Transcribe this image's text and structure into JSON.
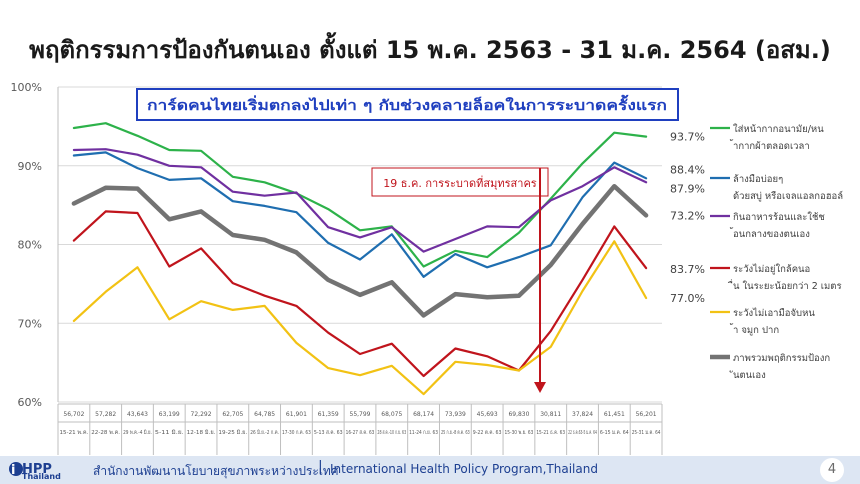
{
  "title": "พฤติกรรมการป้องกันตนเอง ตั้งแต่ 15 พ.ค. 2563 - 31 ม.ค. 2564 (อสม.)",
  "footer": {
    "org_th": "สำนักงานพัฒนานโยบายสุขภาพระหว่างประเทศ",
    "separator": "|",
    "org_en": "International Health Policy Program,Thailand",
    "logo_text": "iHPP",
    "logo_sub": "Thailand",
    "page_number": "4"
  },
  "chart_data": {
    "type": "line",
    "ylim": [
      60,
      100
    ],
    "y_ticks": [
      "100%",
      "90%",
      "80%",
      "70%",
      "60%"
    ],
    "grid": true,
    "legend_position": "right",
    "categories": [
      "15-21 พ.ค.",
      "22-28 พ.ค.",
      "29 พ.ค.-4 มิ.ย.",
      "5-11 มิ.ย.",
      "12-18 มิ.ย.",
      "19-25 มิ.ย.",
      "26 มิ.ย.-2 ก.ค.",
      "17-30 ก.ค. 63",
      "5-13 ส.ค. 63",
      "16-27 ส.ค. 63",
      "28 ส.ค.-10 ก.ย. 63",
      "11-24 ก.ย. 63",
      "25 ก.ย.-8 ต.ค. 63",
      "9-22 ต.ค. 63",
      "15-30 พ.ย. 63",
      "15-21 ธ.ค. 63",
      "22 ธ.ค.63-5 ม.ค. 64",
      "6-15 ม.ค. 64",
      "25-31 ม.ค. 64"
    ],
    "sample_sizes": [
      "56,702",
      "57,282",
      "43,643",
      "63,199",
      "72,292",
      "62,705",
      "64,785",
      "61,901",
      "61,359",
      "55,799",
      "68,075",
      "68,174",
      "73,939",
      "45,693",
      "69,830",
      "30,811",
      "37,824",
      "61,451",
      "56,201"
    ],
    "series": [
      {
        "name": "ใส่หน้ากากอนามัย/หน้ากากผ้าตลอดเวลา",
        "color": "#2db24a",
        "values": [
          94.8,
          95.4,
          93.8,
          92.0,
          91.9,
          88.6,
          87.9,
          86.5,
          84.5,
          81.8,
          82.3,
          77.2,
          79.2,
          78.4,
          81.5,
          85.8,
          90.3,
          94.2,
          93.7
        ]
      },
      {
        "name": "ล้างมือบ่อยๆ ด้วยสบู่ หรือเจลแอลกอฮอล์",
        "color": "#1f6eb0",
        "values": [
          91.3,
          91.7,
          89.7,
          88.2,
          88.4,
          85.5,
          84.9,
          84.1,
          80.2,
          78.1,
          81.3,
          75.9,
          78.8,
          77.1,
          78.4,
          79.9,
          86.0,
          90.4,
          88.4
        ]
      },
      {
        "name": "กินอาหารร้อนและใช้ช้อนกลางของตนเอง",
        "color": "#7030a0",
        "values": [
          92.0,
          92.1,
          91.4,
          90.0,
          89.8,
          86.7,
          86.2,
          86.6,
          82.2,
          80.9,
          82.2,
          79.1,
          80.7,
          82.3,
          82.2,
          85.6,
          87.4,
          89.8,
          87.9
        ]
      },
      {
        "name": "ระวังไม่อยู่ใกล้คนอื่น ในระยะน้อยกว่า 2 เมตร",
        "color": "#c0141c",
        "values": [
          80.5,
          84.2,
          84.0,
          77.2,
          79.5,
          75.1,
          73.5,
          72.2,
          68.8,
          66.1,
          67.4,
          63.3,
          66.8,
          65.8,
          64.0,
          69.0,
          75.5,
          82.3,
          77.0
        ]
      },
      {
        "name": "ระวังไม่เอามือจับหน้า จมูก ปาก",
        "color": "#f2c214",
        "values": [
          70.3,
          74.0,
          77.1,
          70.5,
          72.8,
          71.7,
          72.2,
          67.5,
          64.3,
          63.4,
          64.6,
          61.0,
          65.1,
          64.7,
          64.0,
          67.0,
          74.1,
          80.4,
          73.2
        ]
      },
      {
        "name": "ภาพรวมพฤติกรรมป้องกันตนเอง",
        "color": "#737373",
        "values": [
          85.2,
          87.2,
          87.1,
          83.2,
          84.2,
          81.2,
          80.6,
          79.0,
          75.5,
          73.6,
          75.2,
          71.0,
          73.7,
          73.3,
          73.5,
          77.4,
          82.6,
          87.4,
          83.7
        ]
      }
    ],
    "end_labels": [
      "93.7%",
      "88.4%",
      "87.9%",
      "83.7%",
      "77.0%",
      "73.2%"
    ],
    "annotations": {
      "headline": "การ์ดคนไทยเริ่มตกลงไปเท่า ๆ กับช่วงคลายล็อคในการระบาดครั้งแรก",
      "event": "19 ธ.ค. การระบาดที่สมุทรสาคร"
    }
  }
}
